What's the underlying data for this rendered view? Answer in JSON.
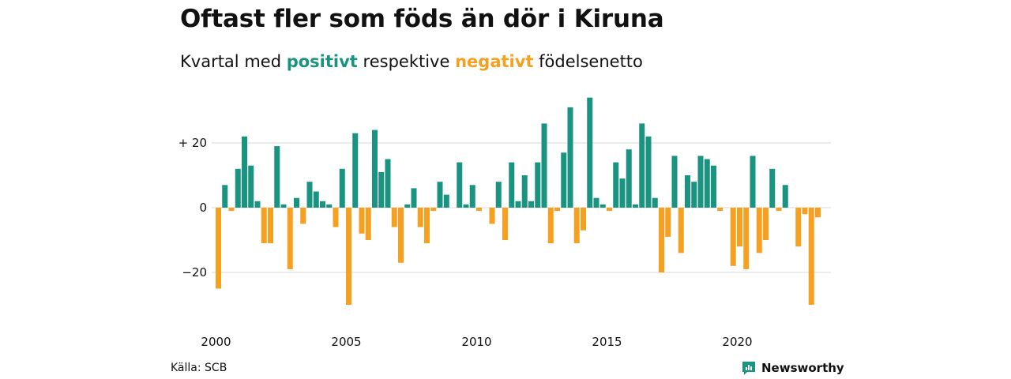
{
  "title": "Oftast fler som föds än dör i Kiruna",
  "subtitle": {
    "prefix": "Kvartal med",
    "positive_word": "positivt",
    "middle": "respektive",
    "negative_word": "negativt",
    "suffix": "födelsenetto"
  },
  "colors": {
    "positive": "#1a9480",
    "negative": "#f5a020",
    "grid": "#d8d8d8",
    "text": "#111111",
    "brand": "#1a9480"
  },
  "source": "Källa: SCB",
  "brand": {
    "name": "Newsworthy",
    "icon": "newsworthy-logo-icon"
  },
  "chart_data": {
    "type": "bar",
    "title": "Oftast fler som föds än dör i Kiruna",
    "subtitle": "Kvartal med positivt respektive negativt födelsenetto",
    "x_start": 2000,
    "x_step": 0.25,
    "xticks": [
      2000,
      2005,
      2010,
      2015,
      2020
    ],
    "ylim": [
      -30,
      34
    ],
    "yticks": [
      {
        "value": 20,
        "label": "+ 20"
      },
      {
        "value": 0,
        "label": "0"
      },
      {
        "value": -20,
        "label": "−20"
      }
    ],
    "grid": true,
    "values": [
      -25,
      7,
      -1,
      12,
      22,
      13,
      2,
      -11,
      -11,
      19,
      1,
      -19,
      3,
      -5,
      8,
      5,
      2,
      1,
      -6,
      12,
      -30,
      23,
      -8,
      -10,
      24,
      11,
      15,
      -6,
      -17,
      1,
      6,
      -6,
      -11,
      -1,
      8,
      4,
      0,
      14,
      1,
      7,
      -1,
      0,
      -5,
      8,
      -10,
      14,
      2,
      10,
      2,
      14,
      26,
      -11,
      -1,
      17,
      31,
      -11,
      -7,
      34,
      3,
      1,
      -1,
      14,
      9,
      18,
      1,
      26,
      22,
      3,
      -20,
      -9,
      16,
      -14,
      10,
      8,
      16,
      15,
      13,
      -1,
      0,
      -18,
      -12,
      -19,
      16,
      -14,
      -10,
      12,
      -1,
      7,
      0,
      -12,
      -2,
      -30,
      -3
    ]
  }
}
